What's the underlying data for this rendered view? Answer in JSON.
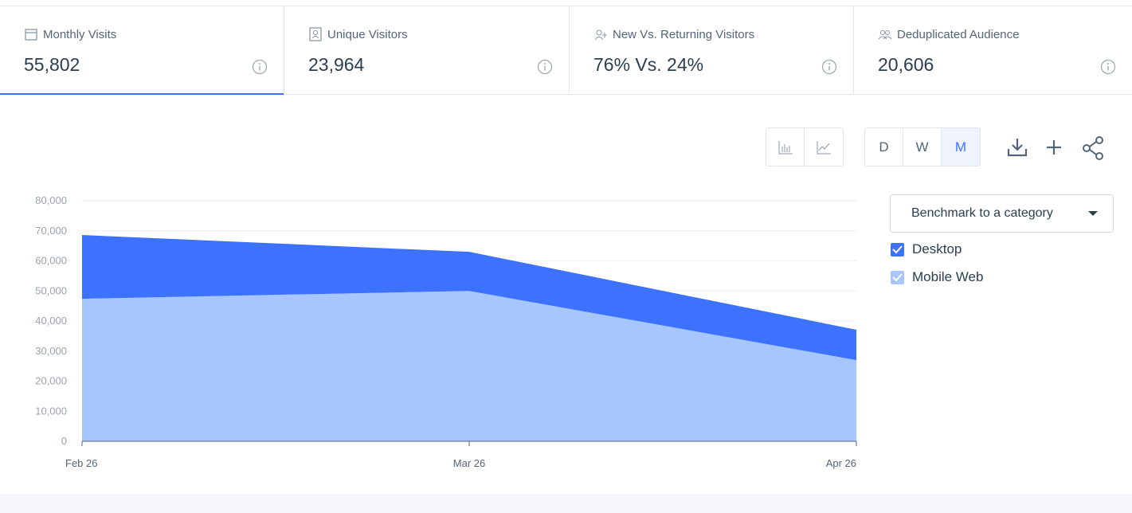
{
  "metrics": [
    {
      "label": "Monthly Visits",
      "value": "55,802"
    },
    {
      "label": "Unique Visitors",
      "value": "23,964"
    },
    {
      "label": "New Vs. Returning Visitors",
      "value": "76% Vs. 24%"
    },
    {
      "label": "Deduplicated Audience",
      "value": "20,606"
    }
  ],
  "granularity": [
    "D",
    "W",
    "M"
  ],
  "benchmark": "Benchmark to a category",
  "chart_data": {
    "type": "area",
    "stacked": true,
    "categories": [
      "Feb 26",
      "Mar 26",
      "Apr 26"
    ],
    "series": [
      {
        "name": "Desktop",
        "color": "#3d72fe",
        "values": [
          21200,
          13000,
          10100
        ]
      },
      {
        "name": "Mobile Web",
        "color": "#a7c6fd",
        "values": [
          47400,
          50000,
          27000
        ]
      }
    ],
    "ylim": [
      0,
      80000
    ],
    "yticks": [
      0,
      {
        "value": 10000,
        "label": "10,000"
      },
      {
        "value": 20000,
        "label": "20,000"
      },
      {
        "value": 30000,
        "label": "30,000"
      },
      {
        "value": 40000,
        "label": "40,000"
      },
      {
        "value": 50000,
        "label": "50,000"
      },
      {
        "value": 60000,
        "label": "60,000"
      },
      {
        "value": 70000,
        "label": "70,000"
      },
      {
        "value": 80000,
        "label": "80,000"
      }
    ],
    "grid": true
  }
}
